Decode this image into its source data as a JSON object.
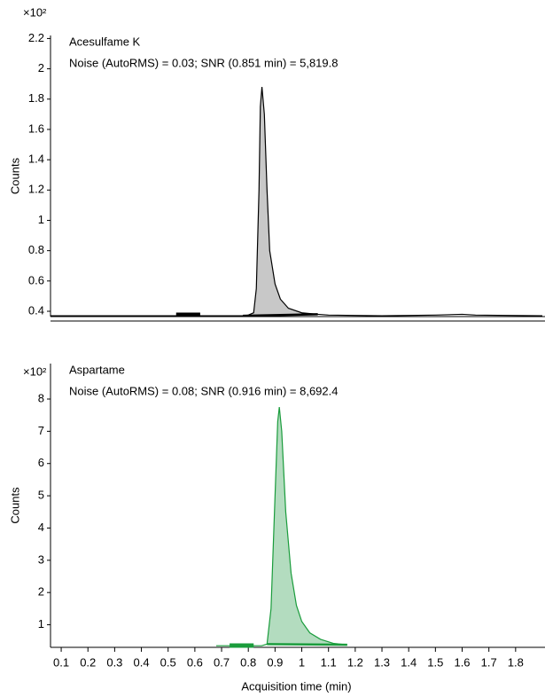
{
  "chart_data": [
    {
      "type": "line",
      "title": "Acesulfame K",
      "annotation": "Noise (AutoRMS) = 0.03; SNR (0.851 min) = 5,819.8",
      "y_label": "Counts",
      "y_multiplier": "×10²",
      "color": "#000000",
      "fill": "#c8c8c8",
      "x": [
        0.06,
        0.5,
        0.78,
        0.8,
        0.82,
        0.83,
        0.84,
        0.845,
        0.851,
        0.86,
        0.87,
        0.88,
        0.9,
        0.92,
        0.95,
        1.0,
        1.03,
        1.06,
        1.1,
        1.3,
        1.5,
        1.6,
        1.65,
        1.9
      ],
      "values": [
        0.37,
        0.37,
        0.37,
        0.375,
        0.39,
        0.55,
        1.2,
        1.75,
        1.88,
        1.7,
        1.2,
        0.8,
        0.58,
        0.48,
        0.42,
        0.39,
        0.385,
        0.38,
        0.375,
        0.37,
        0.375,
        0.38,
        0.375,
        0.37
      ],
      "integration": [
        0.78,
        1.06
      ],
      "noise_region": [
        0.53,
        0.62
      ],
      "xlim": [
        0.06,
        1.9
      ],
      "ylim": [
        0.365,
        2.22
      ],
      "yticks": [
        0.4,
        0.6,
        0.8,
        1,
        1.2,
        1.4,
        1.6,
        1.8,
        2,
        2.2
      ]
    },
    {
      "type": "line",
      "title": "Aspartame",
      "annotation": "Noise (AutoRMS) = 0.08; SNR (0.916 min) = 8,692.4",
      "y_label": "Counts",
      "y_multiplier": "×10²",
      "color": "#1a9c3c",
      "fill": "#b3dcbf",
      "x": [
        0.68,
        0.85,
        0.87,
        0.885,
        0.9,
        0.91,
        0.916,
        0.925,
        0.94,
        0.96,
        0.98,
        1.0,
        1.03,
        1.07,
        1.12,
        1.17
      ],
      "values": [
        0.35,
        0.35,
        0.4,
        1.5,
        5.0,
        7.3,
        7.75,
        7.0,
        4.5,
        2.6,
        1.6,
        1.1,
        0.75,
        0.55,
        0.42,
        0.38
      ],
      "integration": [
        0.87,
        1.17
      ],
      "noise_region": [
        0.73,
        0.82
      ],
      "xlim": [
        0.06,
        1.9
      ],
      "ylim": [
        0.3,
        9.1
      ],
      "yticks": [
        1,
        2,
        3,
        4,
        5,
        6,
        7,
        8
      ],
      "xticks": [
        0.1,
        0.2,
        0.3,
        0.4,
        0.5,
        0.6,
        0.7,
        0.8,
        0.9,
        1,
        1.1,
        1.2,
        1.3,
        1.4,
        1.5,
        1.6,
        1.7,
        1.8
      ],
      "x_label": "Acquisition time (min)"
    }
  ]
}
